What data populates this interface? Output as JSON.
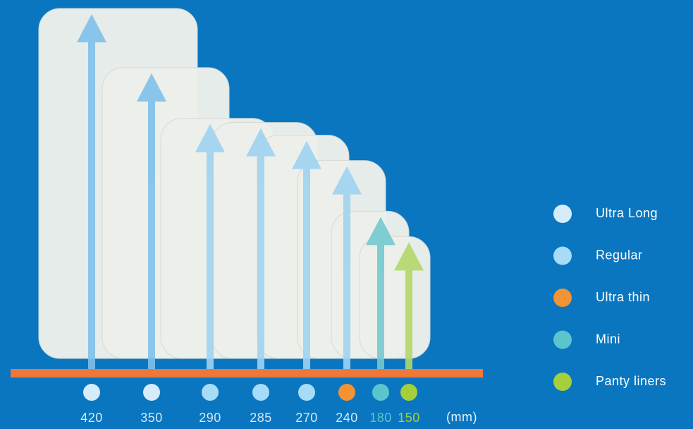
{
  "chart_data": {
    "type": "arrow",
    "values": [
      420,
      350,
      290,
      285,
      270,
      240,
      180,
      150
    ],
    "unit": "(mm)",
    "ylim": [
      0,
      420
    ],
    "arrow_colors": [
      "#7fc0ea",
      "#7fc0ea",
      "#9fd3f1",
      "#9fd3f1",
      "#9fd3f1",
      "#9fd3f1",
      "#74c9d0",
      "#b2d86a"
    ],
    "dot_colors": [
      "#d6ecfb",
      "#d6ecfb",
      "#a6dcf7",
      "#a6dcf7",
      "#a6dcf7",
      "#f39333",
      "#5bc4cc",
      "#a5cf3c"
    ],
    "legend": [
      {
        "name": "Ultra Long",
        "color": "#d6ecfb"
      },
      {
        "name": "Regular",
        "color": "#a6dcf7"
      },
      {
        "name": "Ultra thin",
        "color": "#f39333"
      },
      {
        "name": "Mini",
        "color": "#5bc4cc"
      },
      {
        "name": "Panty liners",
        "color": "#a5cf3c"
      }
    ]
  }
}
